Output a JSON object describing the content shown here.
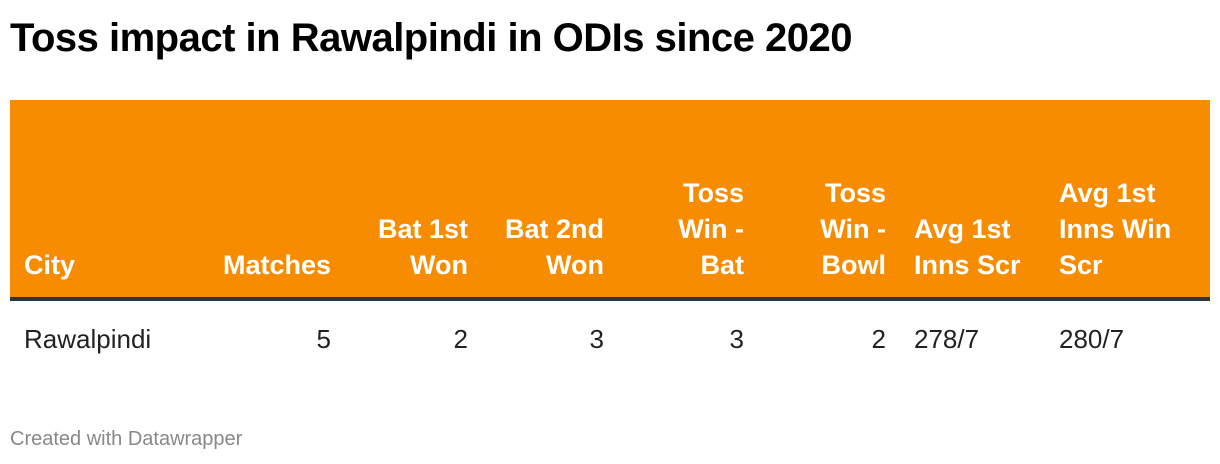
{
  "title": "Toss impact in Rawalpindi in ODIs since 2020",
  "footer": "Created with Datawrapper",
  "colors": {
    "header_bg": "#f78c00",
    "header_text": "#ffffff",
    "rule": "#333333"
  },
  "chart_data": {
    "type": "table",
    "columns": [
      "City",
      "Matches",
      "Bat 1st Won",
      "Bat 2nd Won",
      "Toss Win - Bat",
      "Toss Win - Bowl",
      "Avg 1st Inns Scr",
      "Avg 1st Inns Win Scr"
    ],
    "rows": [
      [
        "Rawalpindi",
        "5",
        "2",
        "3",
        "3",
        "2",
        "278/7",
        "280/7"
      ]
    ]
  }
}
